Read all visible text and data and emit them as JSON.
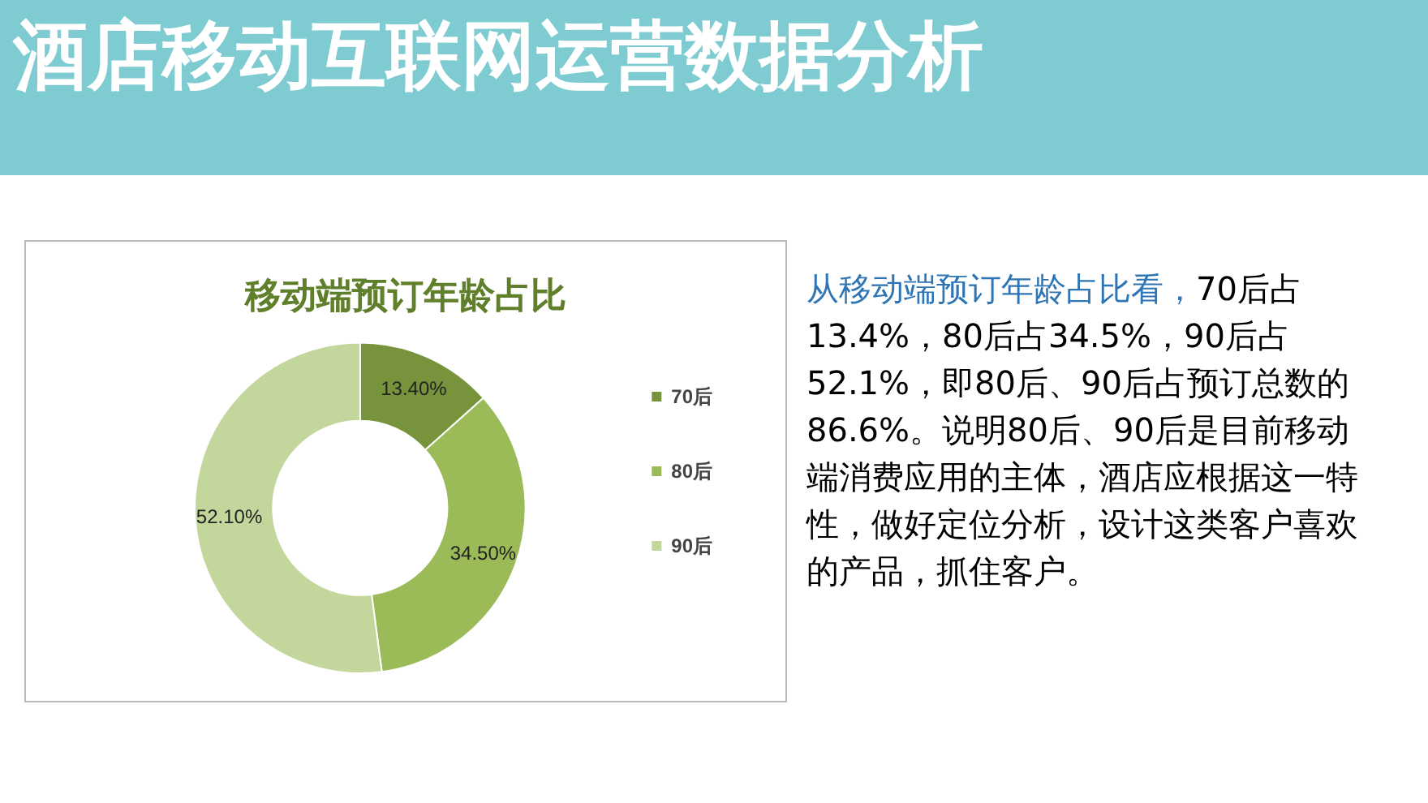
{
  "chart_data": {
    "type": "donut",
    "title": "酒店移动互联网运营数据分析",
    "subtitle": "移动端预订年龄占比",
    "categories": [
      "70后",
      "80后",
      "90后"
    ],
    "values": [
      13.4,
      34.5,
      52.1
    ],
    "value_labels": [
      "13.40%",
      "34.50%",
      "52.10%"
    ],
    "colors": [
      "#77933c",
      "#9bbb59",
      "#c3d69b"
    ],
    "legend": "right",
    "annotations": [
      "从移动端预订年龄占比看，",
      "70后占13.4%，80后占34.5%，90后占52.1%，即80后、90后占预订总数的86.6%。说明80后、90后是目前移动端消费应用的主体，酒店应根据这一特性，做好定位分析，设计这类客户喜欢的产品，抓住客户。"
    ]
  }
}
